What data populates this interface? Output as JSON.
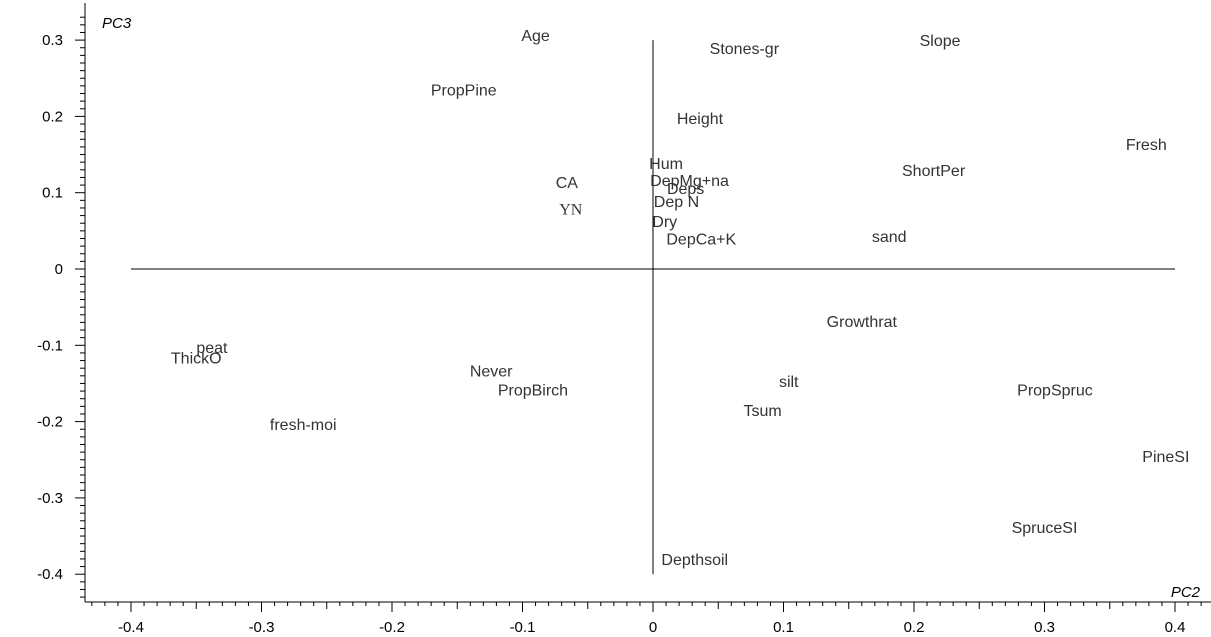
{
  "chart_data": {
    "type": "scatter",
    "title": "",
    "xlabel": "PC2",
    "ylabel": "PC3",
    "xlim": [
      -0.45,
      0.42
    ],
    "ylim": [
      -0.43,
      0.33
    ],
    "xticks": [
      -0.4,
      -0.3,
      -0.2,
      -0.1,
      0,
      0.1,
      0.2,
      0.3,
      0.4
    ],
    "xtick_labels": [
      "-0.4",
      "-0.3",
      "-0.2",
      "-0.1",
      "0",
      "0.1",
      "0.2",
      "0.3",
      "0.4"
    ],
    "yticks": [
      0.3,
      0.2,
      0.1,
      0,
      -0.1,
      -0.2,
      -0.3,
      -0.4
    ],
    "ytick_labels": [
      "0.3",
      "0.2",
      "0.1",
      "0",
      "-0.1",
      "-0.2",
      "-0.3",
      "-0.4"
    ],
    "grid": false,
    "reference_lines": {
      "horizontal": {
        "y": 0,
        "x_from": -0.4,
        "x_to": 0.4
      },
      "vertical": {
        "x": 0,
        "y_from": -0.4,
        "y_to": 0.3
      }
    },
    "points": [
      {
        "label": "Age",
        "x": -0.09,
        "y": 0.305
      },
      {
        "label": "Stones-gr",
        "x": 0.07,
        "y": 0.288
      },
      {
        "label": "Slope",
        "x": 0.22,
        "y": 0.298
      },
      {
        "label": "PropPine",
        "x": -0.145,
        "y": 0.233
      },
      {
        "label": "Height",
        "x": 0.036,
        "y": 0.196
      },
      {
        "label": "Fresh",
        "x": 0.378,
        "y": 0.162
      },
      {
        "label": "Hum",
        "x": 0.01,
        "y": 0.137
      },
      {
        "label": "ShortPer",
        "x": 0.215,
        "y": 0.128
      },
      {
        "label": "DepMg+na",
        "x": 0.028,
        "y": 0.115
      },
      {
        "label": "CA",
        "x": -0.066,
        "y": 0.112
      },
      {
        "label": "Deps",
        "x": 0.025,
        "y": 0.104
      },
      {
        "label": "Dep N",
        "x": 0.018,
        "y": 0.087
      },
      {
        "label": "YN",
        "x": -0.063,
        "y": 0.077,
        "serif": true
      },
      {
        "label": "Dry",
        "x": 0.009,
        "y": 0.061
      },
      {
        "label": "DepCa+K",
        "x": 0.037,
        "y": 0.038
      },
      {
        "label": "sand",
        "x": 0.181,
        "y": 0.041
      },
      {
        "label": "Growthrat",
        "x": 0.16,
        "y": -0.07
      },
      {
        "label": "peat",
        "x": -0.338,
        "y": -0.104
      },
      {
        "label": "ThickO",
        "x": -0.35,
        "y": -0.118
      },
      {
        "label": "Never",
        "x": -0.124,
        "y": -0.135
      },
      {
        "label": "PropBirch",
        "x": -0.092,
        "y": -0.16
      },
      {
        "label": "silt",
        "x": 0.104,
        "y": -0.149
      },
      {
        "label": "PropSpruc",
        "x": 0.308,
        "y": -0.16
      },
      {
        "label": "Tsum",
        "x": 0.084,
        "y": -0.187
      },
      {
        "label": "fresh-moi",
        "x": -0.268,
        "y": -0.205
      },
      {
        "label": "PineSI",
        "x": 0.393,
        "y": -0.247
      },
      {
        "label": "SpruceSI",
        "x": 0.3,
        "y": -0.34
      },
      {
        "label": "Depthsoil",
        "x": 0.032,
        "y": -0.382
      }
    ]
  }
}
